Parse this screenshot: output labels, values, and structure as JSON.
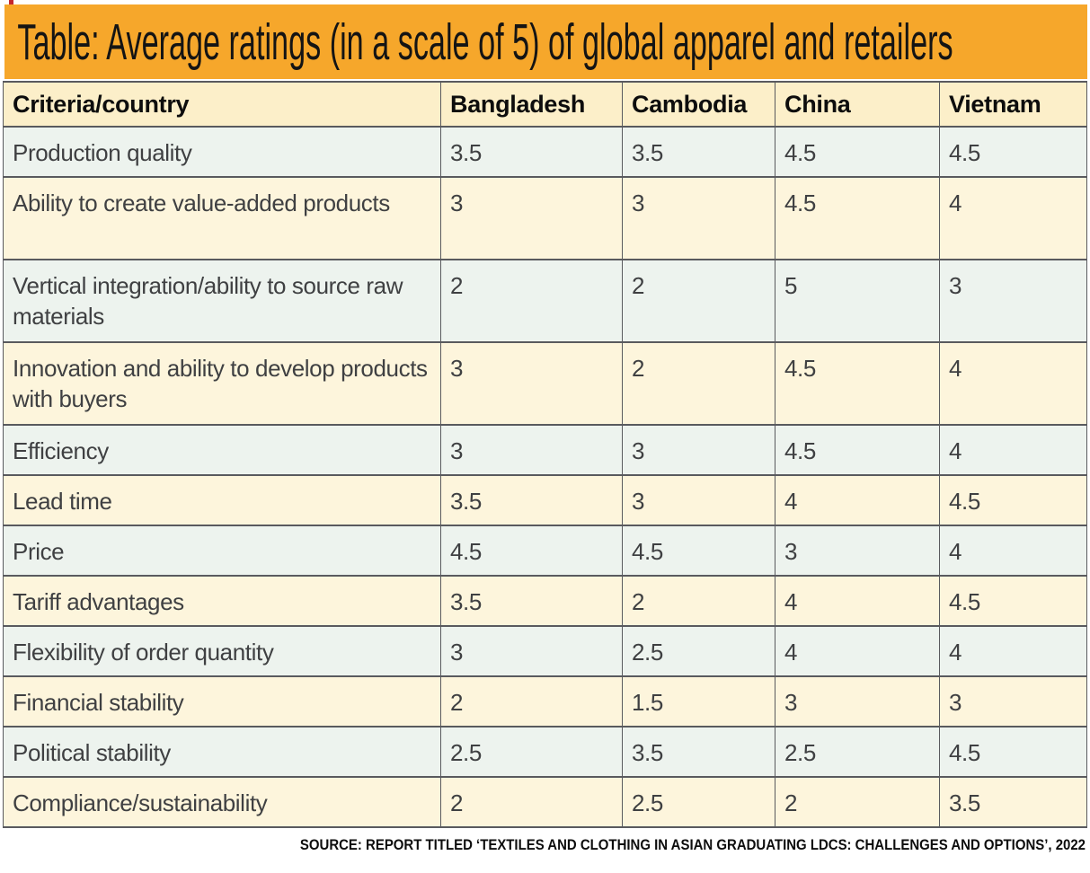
{
  "title": "Table: Average ratings (in a scale of 5) of global apparel and retailers",
  "source": "SOURCE: REPORT TITLED ‘TEXTILES AND CLOTHING IN ASIAN GRADUATING LDCS: CHALLENGES AND OPTIONS’, 2022",
  "colors": {
    "title_band": "#f6a72b",
    "header_row": "#fcefc9",
    "row_green": "#edf3ee",
    "row_cream": "#fdf5dc",
    "border": "#595a5e",
    "red_fragment": "#c4262e"
  },
  "chart_data": {
    "type": "table",
    "title": "Average ratings (in a scale of 5) of global apparel and retailers",
    "columns": [
      "Criteria/country",
      "Bangladesh",
      "Cambodia",
      "China",
      "Vietnam"
    ],
    "rows": [
      {
        "criteria": "Production quality",
        "values": [
          "3.5",
          "3.5",
          "4.5",
          "4.5"
        ],
        "tall": false
      },
      {
        "criteria": "Ability to create value-added products",
        "values": [
          "3",
          "3",
          "4.5",
          "4"
        ],
        "tall": true
      },
      {
        "criteria": "Vertical integration/ability to source raw materials",
        "values": [
          "2",
          "2",
          "5",
          "3"
        ],
        "tall": true
      },
      {
        "criteria": "Innovation and ability to develop products with buyers",
        "values": [
          "3",
          "2",
          "4.5",
          "4"
        ],
        "tall": true
      },
      {
        "criteria": "Efficiency",
        "values": [
          "3",
          "3",
          "4.5",
          "4"
        ],
        "tall": false
      },
      {
        "criteria": "Lead time",
        "values": [
          "3.5",
          "3",
          "4",
          "4.5"
        ],
        "tall": false
      },
      {
        "criteria": "Price",
        "values": [
          "4.5",
          "4.5",
          "3",
          "4"
        ],
        "tall": false
      },
      {
        "criteria": "Tariff advantages",
        "values": [
          "3.5",
          "2",
          "4",
          "4.5"
        ],
        "tall": false
      },
      {
        "criteria": "Flexibility of order quantity",
        "values": [
          "3",
          "2.5",
          "4",
          "4"
        ],
        "tall": false
      },
      {
        "criteria": "Financial stability",
        "values": [
          "2",
          "1.5",
          "3",
          "3"
        ],
        "tall": false
      },
      {
        "criteria": "Political stability",
        "values": [
          "2.5",
          "3.5",
          "2.5",
          "4.5"
        ],
        "tall": false
      },
      {
        "criteria": "Compliance/sustainability",
        "values": [
          "2",
          "2.5",
          "2",
          "3.5"
        ],
        "tall": false
      }
    ]
  }
}
